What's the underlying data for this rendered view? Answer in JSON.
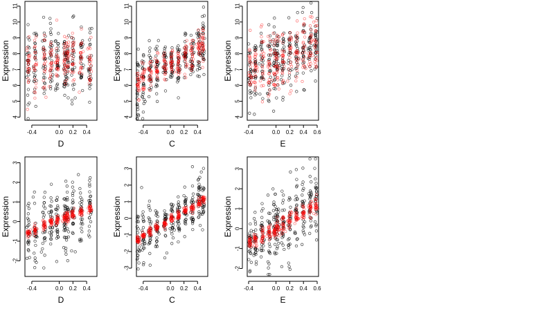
{
  "chart_data": [
    {
      "type": "scatter",
      "panel_row": 1,
      "panel_col": 1,
      "xlabel": "D",
      "ylabel": "Expression",
      "xticks": [
        "-0.4",
        "0.0",
        "0.2",
        "0.4"
      ],
      "xtick_values": [
        -0.4,
        0.0,
        0.2,
        0.4
      ],
      "yticks": [
        "4",
        "5",
        "6",
        "7",
        "8",
        "9",
        "10",
        "11"
      ],
      "ytick_values": [
        4,
        5,
        6,
        7,
        8,
        9,
        10,
        11
      ],
      "xlim": [
        -0.5,
        0.55
      ],
      "ylim": [
        3.8,
        11.3
      ],
      "grid": false,
      "series": [
        {
          "role": "observed",
          "color": "#000000",
          "x_groups": [
            -0.45,
            -0.35,
            -0.22,
            -0.12,
            -0.03,
            0.08,
            0.12,
            0.2,
            0.32,
            0.45
          ],
          "y_mean": [
            7.2,
            7.3,
            7.3,
            7.4,
            7.5,
            7.4,
            7.5,
            7.6,
            7.6,
            7.5
          ],
          "y_sd": [
            1.3,
            1.3,
            1.2,
            1.3,
            1.2,
            1.2,
            1.1,
            1.2,
            1.2,
            1.2
          ]
        },
        {
          "role": "fitted",
          "color": "#ff0000",
          "x_groups": [
            -0.45,
            -0.35,
            -0.22,
            -0.12,
            -0.03,
            0.08,
            0.12,
            0.2,
            0.32,
            0.45
          ],
          "y_mean": [
            7.2,
            7.3,
            7.3,
            7.4,
            7.5,
            7.4,
            7.5,
            7.6,
            7.6,
            7.5
          ],
          "y_sd": [
            0.8,
            0.8,
            0.8,
            0.8,
            0.8,
            0.8,
            0.8,
            0.8,
            0.8,
            0.8
          ]
        }
      ]
    },
    {
      "type": "scatter",
      "panel_row": 1,
      "panel_col": 2,
      "xlabel": "C",
      "ylabel": "Expression",
      "xticks": [
        "-0.4",
        "0.0",
        "0.2",
        "0.4"
      ],
      "xtick_values": [
        -0.4,
        0.0,
        0.2,
        0.4
      ],
      "yticks": [
        "4",
        "5",
        "6",
        "7",
        "8",
        "9",
        "10",
        "11"
      ],
      "ytick_values": [
        4,
        5,
        6,
        7,
        8,
        9,
        10,
        11
      ],
      "xlim": [
        -0.5,
        0.55
      ],
      "ylim": [
        3.8,
        11.3
      ],
      "grid": false,
      "series": [
        {
          "role": "observed",
          "color": "#000000",
          "x_groups": [
            -0.48,
            -0.4,
            -0.3,
            -0.2,
            -0.08,
            0.02,
            0.12,
            0.22,
            0.32,
            0.42,
            0.48
          ],
          "y_mean": [
            5.9,
            6.5,
            6.8,
            7.0,
            7.1,
            7.3,
            7.5,
            7.8,
            8.0,
            8.3,
            8.6
          ],
          "y_sd": [
            1.0,
            0.9,
            0.9,
            0.9,
            0.8,
            0.8,
            0.8,
            0.8,
            0.8,
            0.9,
            1.0
          ]
        },
        {
          "role": "fitted",
          "color": "#ff0000",
          "x_groups": [
            -0.48,
            -0.4,
            -0.3,
            -0.2,
            -0.08,
            0.02,
            0.12,
            0.22,
            0.32,
            0.42,
            0.48
          ],
          "y_mean": [
            6.0,
            6.5,
            6.8,
            7.0,
            7.1,
            7.3,
            7.5,
            7.8,
            8.0,
            8.4,
            8.7
          ],
          "y_sd": [
            0.5,
            0.5,
            0.5,
            0.5,
            0.5,
            0.5,
            0.5,
            0.5,
            0.5,
            0.5,
            0.5
          ]
        }
      ]
    },
    {
      "type": "scatter",
      "panel_row": 1,
      "panel_col": 3,
      "xlabel": "E",
      "ylabel": "Expression",
      "xticks": [
        "-0.4",
        "0.0",
        "0.2",
        "0.4",
        "0.6"
      ],
      "xtick_values": [
        -0.4,
        0.0,
        0.2,
        0.4,
        0.6
      ],
      "yticks": [
        "4",
        "5",
        "6",
        "7",
        "8",
        "9",
        "10",
        "11"
      ],
      "ytick_values": [
        4,
        5,
        6,
        7,
        8,
        9,
        10,
        11
      ],
      "xlim": [
        -0.42,
        0.62
      ],
      "ylim": [
        3.8,
        11.3
      ],
      "grid": false,
      "series": [
        {
          "role": "observed",
          "color": "#000000",
          "x_groups": [
            -0.38,
            -0.3,
            -0.2,
            -0.1,
            -0.02,
            0.02,
            0.1,
            0.2,
            0.3,
            0.4,
            0.5,
            0.58
          ],
          "y_mean": [
            6.6,
            7.0,
            7.2,
            7.4,
            7.6,
            7.6,
            7.7,
            7.8,
            8.0,
            8.2,
            8.3,
            8.4
          ],
          "y_sd": [
            0.9,
            1.0,
            1.0,
            1.1,
            1.1,
            1.1,
            1.1,
            1.1,
            1.0,
            1.0,
            1.0,
            1.0
          ]
        },
        {
          "role": "fitted",
          "color": "#ff0000",
          "x_groups": [
            -0.38,
            -0.3,
            -0.2,
            -0.1,
            -0.02,
            0.02,
            0.1,
            0.2,
            0.3,
            0.4,
            0.5,
            0.58
          ],
          "y_mean": [
            6.9,
            7.1,
            7.2,
            7.4,
            7.5,
            7.6,
            7.7,
            7.8,
            8.0,
            8.1,
            8.3,
            8.4
          ],
          "y_sd": [
            1.0,
            1.0,
            1.0,
            1.0,
            1.0,
            1.0,
            1.0,
            1.0,
            1.0,
            1.0,
            1.0,
            1.0
          ]
        }
      ]
    },
    {
      "type": "scatter",
      "panel_row": 2,
      "panel_col": 1,
      "xlabel": "D",
      "ylabel": "Expression",
      "xticks": [
        "-0.4",
        "0.0",
        "0.2",
        "0.4"
      ],
      "xtick_values": [
        -0.4,
        0.0,
        0.2,
        0.4
      ],
      "yticks": [
        "-2",
        "-1",
        "0",
        "1",
        "2",
        "3"
      ],
      "ytick_values": [
        -2,
        -1,
        0,
        1,
        2,
        3
      ],
      "xlim": [
        -0.5,
        0.55
      ],
      "ylim": [
        -2.8,
        3.3
      ],
      "grid": false,
      "series": [
        {
          "role": "observed",
          "color": "#000000",
          "x_groups": [
            -0.45,
            -0.35,
            -0.22,
            -0.12,
            -0.03,
            0.08,
            0.12,
            0.2,
            0.32,
            0.45
          ],
          "y_mean": [
            -0.6,
            -0.4,
            -0.2,
            0.0,
            0.1,
            0.2,
            0.3,
            0.4,
            0.5,
            0.7
          ],
          "y_sd": [
            0.9,
            0.9,
            0.9,
            0.9,
            0.9,
            0.9,
            0.9,
            0.9,
            0.9,
            0.9
          ]
        },
        {
          "role": "fitted",
          "color": "#ff0000",
          "x_groups": [
            -0.45,
            -0.35,
            -0.22,
            -0.12,
            -0.03,
            0.08,
            0.12,
            0.2,
            0.32,
            0.45
          ],
          "y_mean": [
            -0.55,
            -0.4,
            -0.2,
            0.0,
            0.1,
            0.2,
            0.25,
            0.35,
            0.5,
            0.65
          ],
          "y_sd": [
            0.12,
            0.12,
            0.12,
            0.12,
            0.12,
            0.12,
            0.12,
            0.12,
            0.12,
            0.12
          ]
        }
      ]
    },
    {
      "type": "scatter",
      "panel_row": 2,
      "panel_col": 2,
      "xlabel": "C",
      "ylabel": "Expression",
      "xticks": [
        "-0.4",
        "0.0",
        "0.2",
        "0.4"
      ],
      "xtick_values": [
        -0.4,
        0.0,
        0.2,
        0.4
      ],
      "yticks": [
        "-3",
        "-2",
        "-1",
        "0",
        "1",
        "2",
        "3"
      ],
      "ytick_values": [
        -3,
        -2,
        -1,
        0,
        1,
        2,
        3
      ],
      "xlim": [
        -0.5,
        0.55
      ],
      "ylim": [
        -3.5,
        3.7
      ],
      "grid": false,
      "series": [
        {
          "role": "observed",
          "color": "#000000",
          "x_groups": [
            -0.48,
            -0.4,
            -0.3,
            -0.2,
            -0.08,
            0.02,
            0.12,
            0.22,
            0.32,
            0.42,
            0.48
          ],
          "y_mean": [
            -1.4,
            -1.0,
            -0.8,
            -0.6,
            -0.3,
            0.0,
            0.2,
            0.4,
            0.6,
            0.9,
            1.1
          ],
          "y_sd": [
            0.9,
            0.8,
            0.8,
            0.8,
            0.7,
            0.7,
            0.7,
            0.7,
            0.7,
            0.8,
            0.8
          ]
        },
        {
          "role": "fitted",
          "color": "#ff0000",
          "x_groups": [
            -0.48,
            -0.4,
            -0.3,
            -0.2,
            -0.08,
            0.02,
            0.12,
            0.22,
            0.32,
            0.42,
            0.48
          ],
          "y_mean": [
            -1.3,
            -1.0,
            -0.8,
            -0.55,
            -0.3,
            0.0,
            0.2,
            0.45,
            0.65,
            0.95,
            1.15
          ],
          "y_sd": [
            0.12,
            0.12,
            0.12,
            0.12,
            0.12,
            0.12,
            0.12,
            0.12,
            0.12,
            0.12,
            0.12
          ]
        }
      ]
    },
    {
      "type": "scatter",
      "panel_row": 2,
      "panel_col": 3,
      "xlabel": "E",
      "ylabel": "Expression",
      "xticks": [
        "-0.4",
        "0.0",
        "0.2",
        "0.4",
        "0.6"
      ],
      "xtick_values": [
        -0.4,
        0.0,
        0.2,
        0.4,
        0.6
      ],
      "yticks": [
        "-2",
        "-1",
        "0",
        "1",
        "2",
        "3"
      ],
      "ytick_values": [
        -2,
        -1,
        0,
        1,
        2,
        3
      ],
      "xlim": [
        -0.42,
        0.62
      ],
      "ylim": [
        -2.4,
        3.6
      ],
      "grid": false,
      "series": [
        {
          "role": "observed",
          "color": "#000000",
          "x_groups": [
            -0.38,
            -0.3,
            -0.2,
            -0.1,
            -0.02,
            0.02,
            0.1,
            0.2,
            0.3,
            0.4,
            0.5,
            0.58
          ],
          "y_mean": [
            -0.8,
            -0.6,
            -0.4,
            -0.2,
            0.0,
            0.0,
            0.2,
            0.4,
            0.6,
            0.8,
            1.0,
            1.2
          ],
          "y_sd": [
            0.7,
            0.8,
            0.8,
            0.9,
            0.9,
            0.9,
            0.9,
            0.9,
            0.9,
            0.9,
            0.9,
            0.9
          ]
        },
        {
          "role": "fitted",
          "color": "#ff0000",
          "x_groups": [
            -0.38,
            -0.3,
            -0.2,
            -0.1,
            -0.02,
            0.02,
            0.1,
            0.2,
            0.3,
            0.4,
            0.5,
            0.58
          ],
          "y_mean": [
            -0.75,
            -0.55,
            -0.35,
            -0.15,
            0.0,
            0.05,
            0.2,
            0.4,
            0.6,
            0.8,
            1.0,
            1.15
          ],
          "y_sd": [
            0.2,
            0.2,
            0.2,
            0.2,
            0.2,
            0.2,
            0.2,
            0.2,
            0.2,
            0.2,
            0.2,
            0.2
          ]
        }
      ]
    }
  ]
}
